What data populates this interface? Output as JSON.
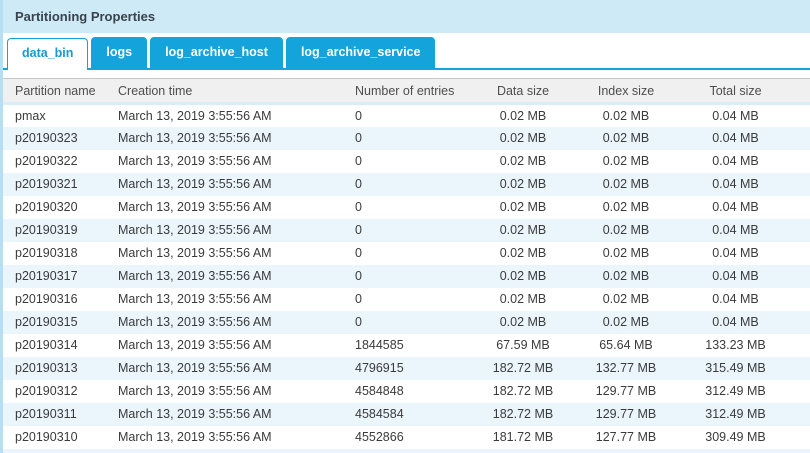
{
  "panel": {
    "title": "Partitioning Properties"
  },
  "tabs": [
    {
      "label": "data_bin",
      "active": true
    },
    {
      "label": "logs",
      "active": false
    },
    {
      "label": "log_archive_host",
      "active": false
    },
    {
      "label": "log_archive_service",
      "active": false
    }
  ],
  "table": {
    "columns": [
      "Partition name",
      "Creation time",
      "Number of entries",
      "Data size",
      "Index size",
      "Total size"
    ],
    "rows": [
      [
        "pmax",
        "March 13, 2019 3:55:56 AM",
        "0",
        "0.02 MB",
        "0.02 MB",
        "0.04 MB"
      ],
      [
        "p20190323",
        "March 13, 2019 3:55:56 AM",
        "0",
        "0.02 MB",
        "0.02 MB",
        "0.04 MB"
      ],
      [
        "p20190322",
        "March 13, 2019 3:55:56 AM",
        "0",
        "0.02 MB",
        "0.02 MB",
        "0.04 MB"
      ],
      [
        "p20190321",
        "March 13, 2019 3:55:56 AM",
        "0",
        "0.02 MB",
        "0.02 MB",
        "0.04 MB"
      ],
      [
        "p20190320",
        "March 13, 2019 3:55:56 AM",
        "0",
        "0.02 MB",
        "0.02 MB",
        "0.04 MB"
      ],
      [
        "p20190319",
        "March 13, 2019 3:55:56 AM",
        "0",
        "0.02 MB",
        "0.02 MB",
        "0.04 MB"
      ],
      [
        "p20190318",
        "March 13, 2019 3:55:56 AM",
        "0",
        "0.02 MB",
        "0.02 MB",
        "0.04 MB"
      ],
      [
        "p20190317",
        "March 13, 2019 3:55:56 AM",
        "0",
        "0.02 MB",
        "0.02 MB",
        "0.04 MB"
      ],
      [
        "p20190316",
        "March 13, 2019 3:55:56 AM",
        "0",
        "0.02 MB",
        "0.02 MB",
        "0.04 MB"
      ],
      [
        "p20190315",
        "March 13, 2019 3:55:56 AM",
        "0",
        "0.02 MB",
        "0.02 MB",
        "0.04 MB"
      ],
      [
        "p20190314",
        "March 13, 2019 3:55:56 AM",
        "1844585",
        "67.59 MB",
        "65.64 MB",
        "133.23 MB"
      ],
      [
        "p20190313",
        "March 13, 2019 3:55:56 AM",
        "4796915",
        "182.72 MB",
        "132.77 MB",
        "315.49 MB"
      ],
      [
        "p20190312",
        "March 13, 2019 3:55:56 AM",
        "4584848",
        "182.72 MB",
        "129.77 MB",
        "312.49 MB"
      ],
      [
        "p20190311",
        "March 13, 2019 3:55:56 AM",
        "4584584",
        "182.72 MB",
        "129.77 MB",
        "312.49 MB"
      ],
      [
        "p20190310",
        "March 13, 2019 3:55:56 AM",
        "4552866",
        "181.72 MB",
        "127.77 MB",
        "309.49 MB"
      ]
    ],
    "cell_names": [
      "cell-partition-name",
      "cell-creation-time",
      "cell-number-of-entries",
      "cell-data-size",
      "cell-index-size",
      "cell-total-size"
    ]
  },
  "colors": {
    "accent_blue": "#14a3da",
    "titlebar_bg": "#cdeaf6",
    "header_bg": "#f0f0f0",
    "row_stripe": "#eaf5fc",
    "panel_border": "#b5dff2"
  }
}
